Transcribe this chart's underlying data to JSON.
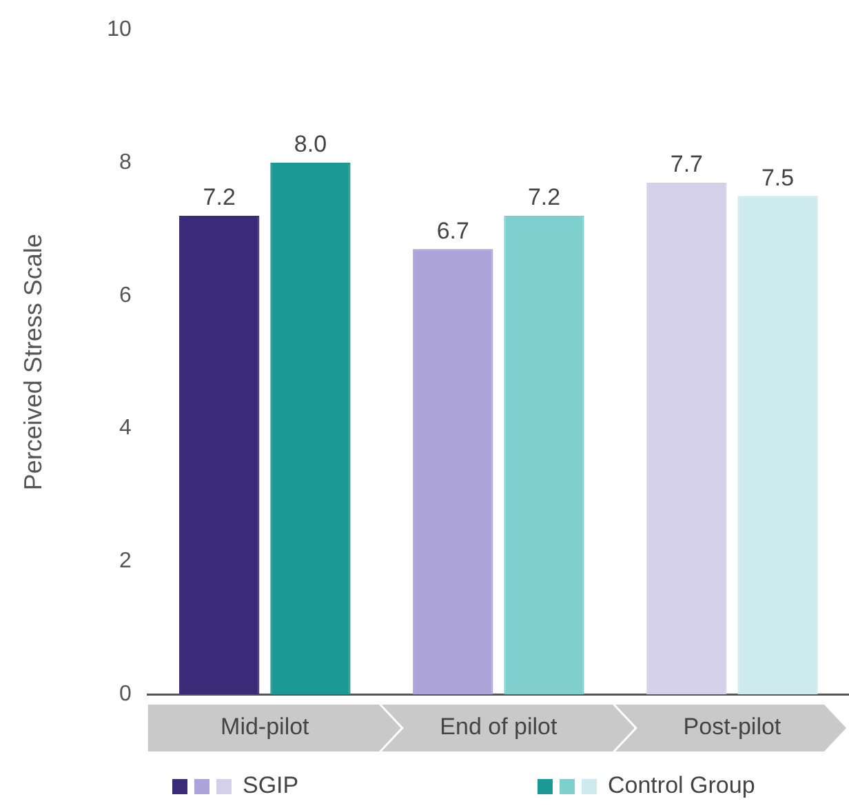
{
  "chart_data": {
    "type": "bar",
    "ylabel": "Perceived Stress Scale",
    "categories": [
      "Mid-pilot",
      "End of pilot",
      "Post-pilot"
    ],
    "series": [
      {
        "name": "SGIP",
        "colors": [
          "#3b2a78",
          "#aca3d8",
          "#d5d0ea"
        ],
        "values": [
          7.2,
          6.7,
          7.7
        ],
        "value_labels": [
          "7.2",
          "6.7",
          "7.7"
        ]
      },
      {
        "name": "Control Group",
        "colors": [
          "#1b9994",
          "#80cfcf",
          "#cdebee"
        ],
        "values": [
          8.0,
          7.2,
          7.5
        ],
        "value_labels": [
          "8.0",
          "7.2",
          "7.5"
        ]
      }
    ],
    "ylim": [
      0,
      10
    ],
    "yticks": [
      0,
      2,
      4,
      6,
      8,
      10
    ],
    "grid": false,
    "legend": "bottom"
  }
}
